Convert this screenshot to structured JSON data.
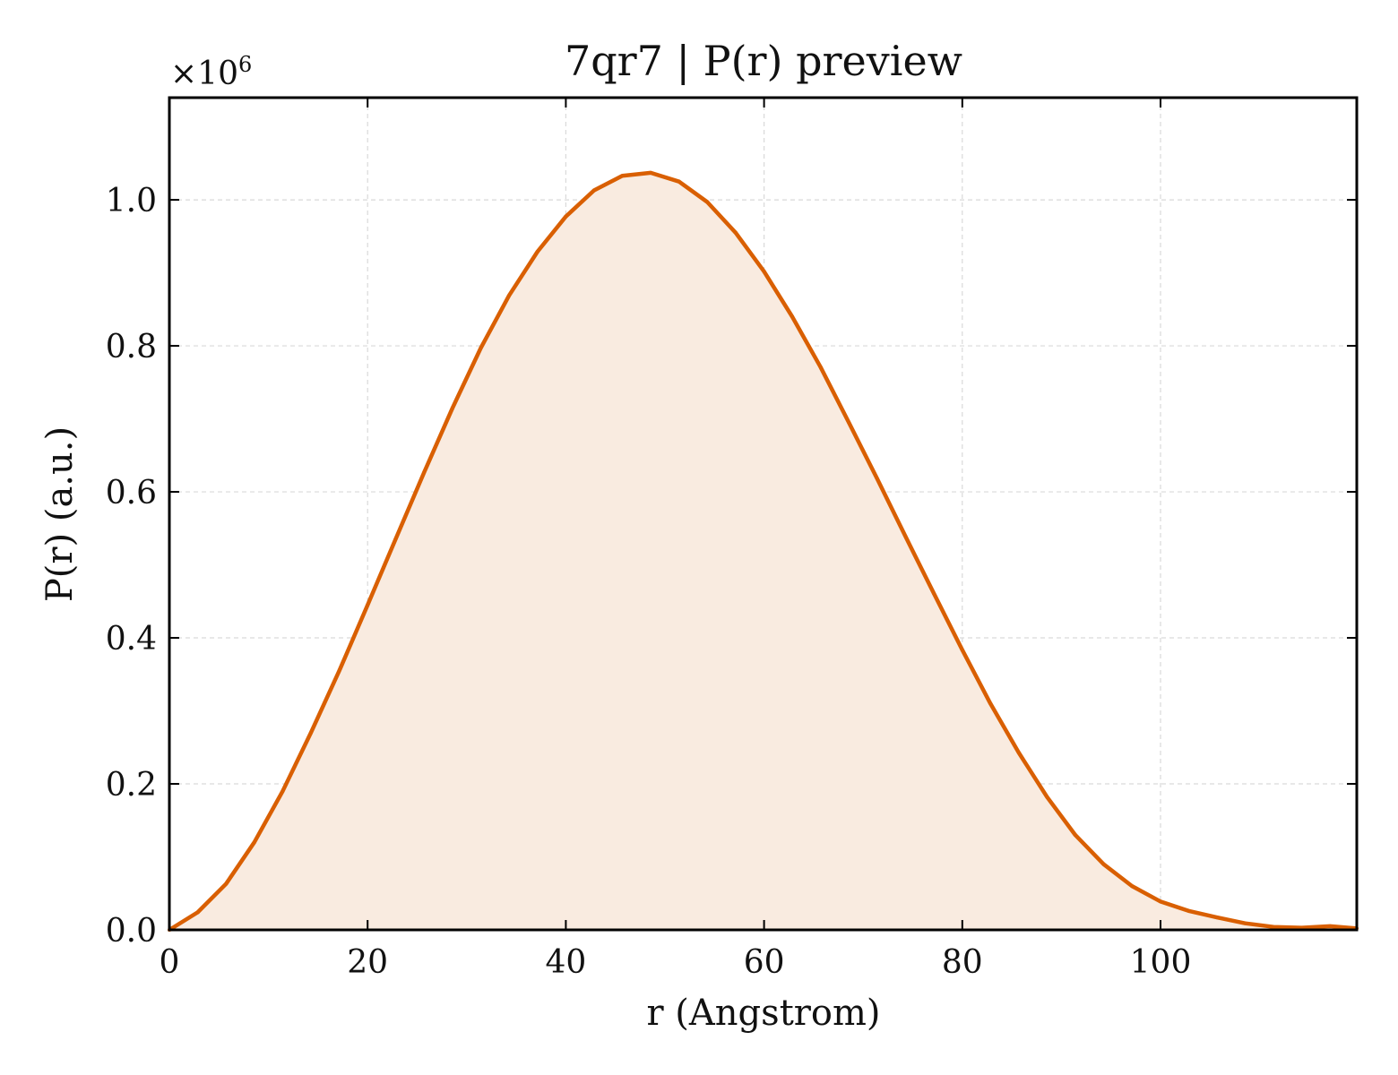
{
  "chart_data": {
    "type": "area",
    "title": "7qr7 | P(r) preview",
    "xlabel": "r (Angstrom)",
    "ylabel": "P(r) (a.u.)",
    "y_multiplier_base": "×10",
    "y_multiplier_exponent": "6",
    "xlim": [
      0,
      119.8
    ],
    "ylim": [
      0,
      1.14
    ],
    "xticks": [
      0,
      20,
      40,
      60,
      80,
      100
    ],
    "xtick_labels": [
      "0",
      "20",
      "40",
      "60",
      "80",
      "100"
    ],
    "yticks": [
      0,
      0.2,
      0.4,
      0.6,
      0.8,
      1.0
    ],
    "ytick_labels": [
      "0.0",
      "0.2",
      "0.4",
      "0.6",
      "0.8",
      "1.0"
    ],
    "grid": true,
    "series": [
      {
        "x": [
          0,
          2.86,
          5.71,
          8.57,
          11.43,
          14.28,
          17.14,
          20.0,
          22.85,
          25.71,
          28.57,
          31.42,
          34.28,
          37.14,
          39.99,
          42.85,
          45.7,
          48.56,
          51.42,
          54.27,
          57.13,
          59.99,
          62.84,
          65.7,
          68.55,
          71.41,
          74.27,
          77.12,
          79.98,
          82.84,
          85.69,
          88.55,
          91.4,
          94.26,
          97.12,
          99.97,
          102.83,
          105.69,
          108.54,
          111.4,
          114.25,
          117.11,
          119.8
        ],
        "values": [
          0.0,
          0.024,
          0.063,
          0.12,
          0.19,
          0.27,
          0.355,
          0.445,
          0.536,
          0.627,
          0.715,
          0.797,
          0.869,
          0.929,
          0.977,
          1.013,
          1.033,
          1.037,
          1.025,
          0.997,
          0.955,
          0.902,
          0.84,
          0.771,
          0.695,
          0.618,
          0.539,
          0.461,
          0.384,
          0.31,
          0.243,
          0.182,
          0.13,
          0.09,
          0.06,
          0.039,
          0.026,
          0.017,
          0.009,
          0.004,
          0.003,
          0.005,
          0.002
        ],
        "line_color": "#d95f02",
        "fill_color": "#f9ebe0"
      }
    ]
  }
}
